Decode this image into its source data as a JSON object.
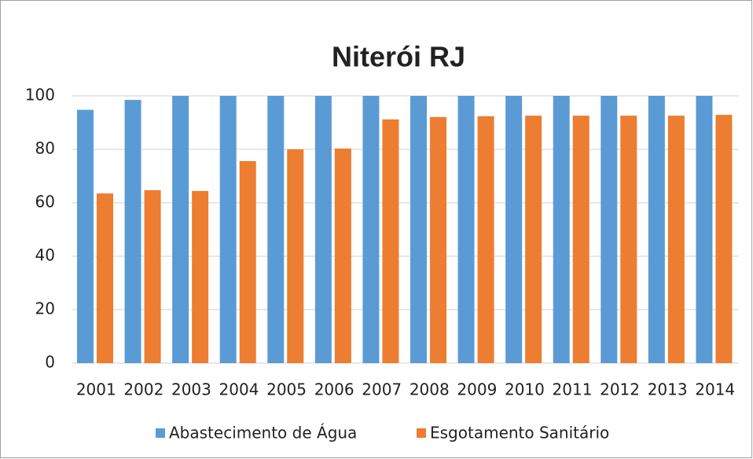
{
  "chart_data": {
    "type": "bar",
    "title": "Niterói RJ",
    "categories": [
      "2001",
      "2002",
      "2003",
      "2004",
      "2005",
      "2006",
      "2007",
      "2008",
      "2009",
      "2010",
      "2011",
      "2012",
      "2013",
      "2014"
    ],
    "series": [
      {
        "name": "Abastecimento de Água",
        "color": "#5b9bd5",
        "values": [
          94.8,
          98.5,
          100,
          100,
          100,
          100,
          100,
          100,
          100,
          100,
          100,
          100,
          100,
          100
        ]
      },
      {
        "name": "Esgotamento Sanitário",
        "color": "#ed7d31",
        "values": [
          63.5,
          64.7,
          64.4,
          75.6,
          80,
          80.3,
          91.2,
          92.1,
          92.4,
          92.6,
          92.6,
          92.6,
          92.6,
          92.9
        ]
      }
    ],
    "ylim": [
      0,
      100
    ],
    "yticks": [
      0,
      20,
      40,
      60,
      80,
      100
    ],
    "grid": true,
    "legend": "bottom"
  }
}
